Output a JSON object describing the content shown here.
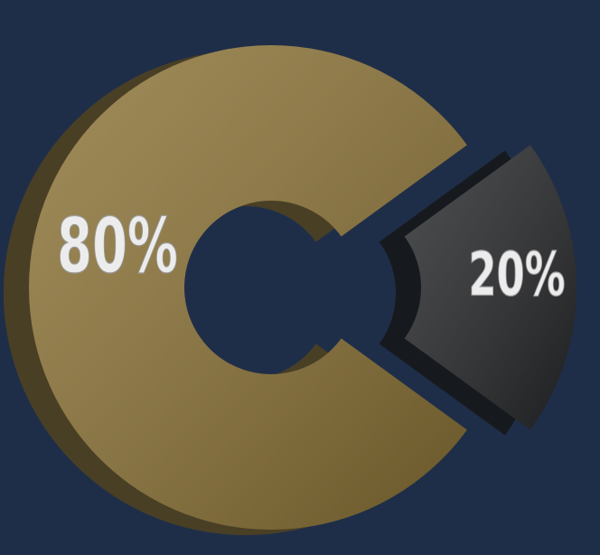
{
  "chart_data": {
    "type": "donut",
    "values": [
      80,
      20
    ],
    "value_labels": [
      "80%",
      "20%"
    ],
    "colors": [
      "#8c7336",
      "#262729"
    ]
  }
}
